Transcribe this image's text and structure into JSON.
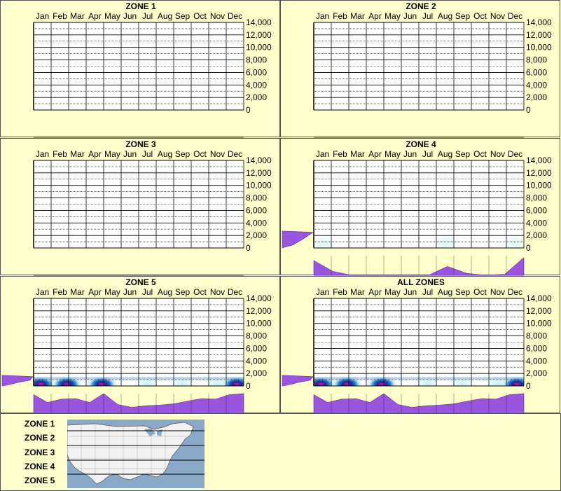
{
  "colors": {
    "background": "#ffffcc",
    "density_fill": "#9955dd",
    "density_stroke": "#6a2bb0",
    "heat_low": "#bfeeee",
    "heat_mid": "#2a7ad8",
    "heat_core": "#1a2a88",
    "heat_peak": "#e000b0"
  },
  "months": [
    "Jan",
    "Feb",
    "Mar",
    "Apr",
    "May",
    "Jun",
    "Jul",
    "Aug",
    "Sep",
    "Oct",
    "Nov",
    "Dec"
  ],
  "chart_data": [
    {
      "type": "heatmap",
      "title": "ZONE 1",
      "categories": [
        "Jan",
        "Feb",
        "Mar",
        "Apr",
        "May",
        "Jun",
        "Jul",
        "Aug",
        "Sep",
        "Oct",
        "Nov",
        "Dec"
      ],
      "y_ticks": [
        "14,000",
        "12,000",
        "10,000",
        "8,000",
        "6,000",
        "4,000",
        "2,000",
        "0"
      ],
      "ylim": [
        0,
        14000
      ],
      "monthly_density": [],
      "elevation_density": [],
      "heat": []
    },
    {
      "type": "heatmap",
      "title": "ZONE 2",
      "categories": [
        "Jan",
        "Feb",
        "Mar",
        "Apr",
        "May",
        "Jun",
        "Jul",
        "Aug",
        "Sep",
        "Oct",
        "Nov",
        "Dec"
      ],
      "y_ticks": [
        "14,000",
        "12,000",
        "10,000",
        "8,000",
        "6,000",
        "4,000",
        "2,000",
        "0"
      ],
      "ylim": [
        0,
        14000
      ],
      "monthly_density": [],
      "elevation_density": [],
      "heat": []
    },
    {
      "type": "heatmap",
      "title": "ZONE 3",
      "categories": [
        "Jan",
        "Feb",
        "Mar",
        "Apr",
        "May",
        "Jun",
        "Jul",
        "Aug",
        "Sep",
        "Oct",
        "Nov",
        "Dec"
      ],
      "y_ticks": [
        "14,000",
        "12,000",
        "10,000",
        "8,000",
        "6,000",
        "4,000",
        "2,000",
        "0"
      ],
      "ylim": [
        0,
        14000
      ],
      "monthly_density": [],
      "elevation_density": [],
      "heat": []
    },
    {
      "type": "heatmap",
      "title": "ZONE 4",
      "categories": [
        "Jan",
        "Feb",
        "Mar",
        "Apr",
        "May",
        "Jun",
        "Jul",
        "Aug",
        "Sep",
        "Oct",
        "Nov",
        "Dec"
      ],
      "y_ticks": [
        "14,000",
        "12,000",
        "10,000",
        "8,000",
        "6,000",
        "4,000",
        "2,000",
        "0"
      ],
      "ylim": [
        0,
        14000
      ],
      "monthly_density": [
        0.75,
        0.2,
        0.0,
        0.0,
        0.0,
        0.0,
        0.0,
        0.45,
        0.1,
        0.0,
        0.05,
        0.9
      ],
      "elevation_density": [
        [
          0,
          0.0
        ],
        [
          500,
          0.35
        ],
        [
          1500,
          0.7
        ],
        [
          2500,
          1.0
        ],
        [
          2700,
          0.0
        ]
      ],
      "heat": [
        {
          "month": 0.5,
          "elev": 800,
          "level": 0.3
        },
        {
          "month": 7.5,
          "elev": 800,
          "level": 0.35
        },
        {
          "month": 11.5,
          "elev": 800,
          "level": 0.3
        }
      ]
    },
    {
      "type": "heatmap",
      "title": "ZONE 5",
      "categories": [
        "Jan",
        "Feb",
        "Mar",
        "Apr",
        "May",
        "Jun",
        "Jul",
        "Aug",
        "Sep",
        "Oct",
        "Nov",
        "Dec"
      ],
      "y_ticks": [
        "14,000",
        "12,000",
        "10,000",
        "8,000",
        "6,000",
        "4,000",
        "2,000",
        "0"
      ],
      "ylim": [
        0,
        14000
      ],
      "monthly_density": [
        0.95,
        0.55,
        0.72,
        0.75,
        0.55,
        1.0,
        0.45,
        0.3,
        0.38,
        0.42,
        0.48,
        0.62,
        0.75,
        0.72,
        0.95,
        1.0
      ],
      "elevation_density": [
        [
          0,
          0.05
        ],
        [
          300,
          0.3
        ],
        [
          600,
          0.55
        ],
        [
          900,
          0.9
        ],
        [
          1500,
          1.0
        ],
        [
          1700,
          0.0
        ]
      ],
      "heat": [
        {
          "month": 0.4,
          "elev": 300,
          "level": 1.0
        },
        {
          "month": 1.9,
          "elev": 300,
          "level": 1.0
        },
        {
          "month": 3.9,
          "elev": 300,
          "level": 1.0
        },
        {
          "month": 6.5,
          "elev": 300,
          "level": 0.6
        },
        {
          "month": 8.5,
          "elev": 300,
          "level": 0.55
        },
        {
          "month": 10.5,
          "elev": 300,
          "level": 0.6
        },
        {
          "month": 11.6,
          "elev": 300,
          "level": 0.85
        }
      ]
    },
    {
      "type": "heatmap",
      "title": "ALL ZONES",
      "categories": [
        "Jan",
        "Feb",
        "Mar",
        "Apr",
        "May",
        "Jun",
        "Jul",
        "Aug",
        "Sep",
        "Oct",
        "Nov",
        "Dec"
      ],
      "y_ticks": [
        "14,000",
        "12,000",
        "10,000",
        "8,000",
        "6,000",
        "4,000",
        "2,000",
        "0"
      ],
      "ylim": [
        0,
        14000
      ],
      "monthly_density": [
        0.95,
        0.55,
        0.72,
        0.75,
        0.55,
        1.0,
        0.45,
        0.3,
        0.38,
        0.42,
        0.48,
        0.62,
        0.75,
        0.72,
        0.95,
        1.0
      ],
      "elevation_density": [
        [
          0,
          0.05
        ],
        [
          300,
          0.3
        ],
        [
          600,
          0.55
        ],
        [
          900,
          0.9
        ],
        [
          1500,
          1.0
        ],
        [
          1700,
          0.0
        ]
      ],
      "heat": [
        {
          "month": 0.4,
          "elev": 300,
          "level": 1.0
        },
        {
          "month": 1.9,
          "elev": 300,
          "level": 1.0
        },
        {
          "month": 3.9,
          "elev": 300,
          "level": 1.0
        },
        {
          "month": 6.5,
          "elev": 300,
          "level": 0.6
        },
        {
          "month": 8.5,
          "elev": 300,
          "level": 0.55
        },
        {
          "month": 10.5,
          "elev": 300,
          "level": 0.6
        },
        {
          "month": 11.6,
          "elev": 300,
          "level": 0.85
        }
      ]
    }
  ],
  "legend": {
    "zones": [
      "ZONE 1",
      "ZONE 2",
      "ZONE 3",
      "ZONE 4",
      "ZONE 5"
    ],
    "map_icon": "us-map-with-zone-bands"
  }
}
